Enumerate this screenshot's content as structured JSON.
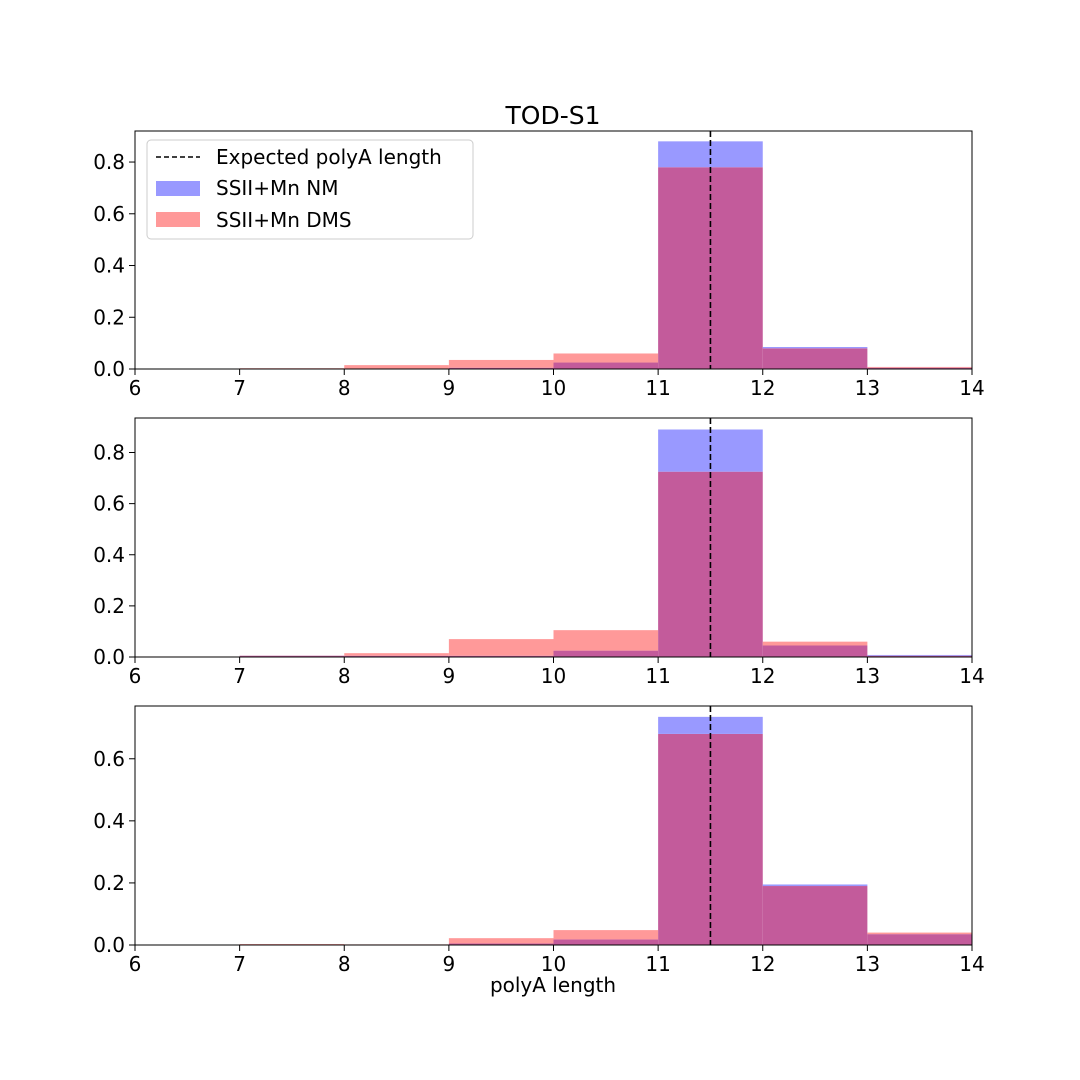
{
  "title": "TOD-S1",
  "xlabel": "polyA length",
  "legend": {
    "location": "upper-left",
    "entries": [
      {
        "label": "Expected polyA length",
        "kind": "dashed-line",
        "color": "#000000"
      },
      {
        "label": "SSII+Mn NM",
        "kind": "patch",
        "color": "#9999ff"
      },
      {
        "label": "SSII+Mn DMS",
        "kind": "patch",
        "color": "#ff9999"
      }
    ]
  },
  "colors": {
    "nm": "#9999ff",
    "dms": "#ff9999",
    "overlap": "#c35b9b",
    "expected_line": "#000000"
  },
  "chart_data": [
    {
      "type": "bar",
      "title": "TOD-S1",
      "xlabel": "",
      "ylabel": "",
      "xlim": [
        6,
        14
      ],
      "ylim": [
        0,
        0.92
      ],
      "xticks": [
        "6",
        "7",
        "8",
        "9",
        "10",
        "11",
        "12",
        "13",
        "14"
      ],
      "yticks": [
        "0.0",
        "0.2",
        "0.4",
        "0.6",
        "0.8"
      ],
      "bin_edges": [
        6,
        7,
        8,
        9,
        10,
        11,
        12,
        13,
        14
      ],
      "expected_polyA_length": 11.5,
      "series": [
        {
          "name": "SSII+Mn NM",
          "values": [
            0,
            0,
            0,
            0.005,
            0.025,
            0.88,
            0.085,
            0.005
          ]
        },
        {
          "name": "SSII+Mn DMS",
          "values": [
            0,
            0.003,
            0.015,
            0.035,
            0.06,
            0.78,
            0.08,
            0.008
          ]
        }
      ]
    },
    {
      "type": "bar",
      "title": "",
      "xlabel": "",
      "ylabel": "",
      "xlim": [
        6,
        14
      ],
      "ylim": [
        0,
        0.935
      ],
      "xticks": [
        "6",
        "7",
        "8",
        "9",
        "10",
        "11",
        "12",
        "13",
        "14"
      ],
      "yticks": [
        "0.0",
        "0.2",
        "0.4",
        "0.6",
        "0.8"
      ],
      "bin_edges": [
        6,
        7,
        8,
        9,
        10,
        11,
        12,
        13,
        14
      ],
      "expected_polyA_length": 11.5,
      "series": [
        {
          "name": "SSII+Mn NM",
          "values": [
            0,
            0.005,
            0.005,
            0.005,
            0.025,
            0.89,
            0.045,
            0.008
          ]
        },
        {
          "name": "SSII+Mn DMS",
          "values": [
            0.002,
            0.005,
            0.015,
            0.07,
            0.105,
            0.725,
            0.06,
            0.005
          ]
        }
      ]
    },
    {
      "type": "bar",
      "title": "",
      "xlabel": "polyA length",
      "ylabel": "",
      "xlim": [
        6,
        14
      ],
      "ylim": [
        0,
        0.77
      ],
      "xticks": [
        "6",
        "7",
        "8",
        "9",
        "10",
        "11",
        "12",
        "13",
        "14"
      ],
      "yticks": [
        "0.0",
        "0.2",
        "0.4",
        "0.6"
      ],
      "bin_edges": [
        6,
        7,
        8,
        9,
        10,
        11,
        12,
        13,
        14
      ],
      "expected_polyA_length": 11.5,
      "series": [
        {
          "name": "SSII+Mn NM",
          "values": [
            0,
            0,
            0,
            0.005,
            0.018,
            0.735,
            0.195,
            0.035
          ]
        },
        {
          "name": "SSII+Mn DMS",
          "values": [
            0,
            0.003,
            0.002,
            0.022,
            0.048,
            0.68,
            0.19,
            0.04
          ]
        }
      ]
    }
  ]
}
